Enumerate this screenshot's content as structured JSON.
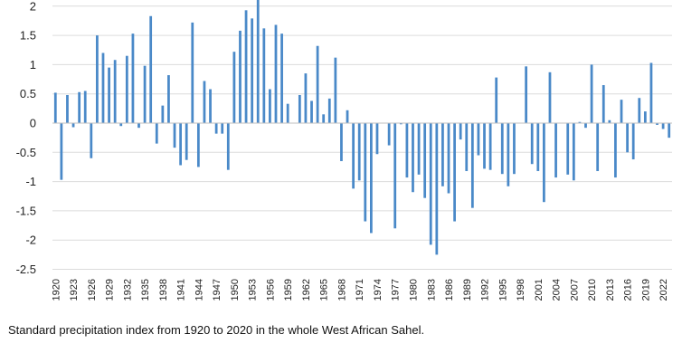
{
  "caption": "Standard precipitation index from 1920 to 2020 in the whole West African Sahel.",
  "chart_data": {
    "type": "bar",
    "color": "#4a89c8",
    "gridlines": true,
    "ylim": [
      -2.5,
      2.1
    ],
    "yticks": [
      "2",
      "1.5",
      "1",
      "0.5",
      "0",
      "-0.5",
      "-1",
      "-1.5",
      "-2",
      "-2.5"
    ],
    "ytick_values": [
      2,
      1.5,
      1,
      0.5,
      0,
      -0.5,
      -1,
      -1.5,
      -2,
      -2.5
    ],
    "xtick_labels": [
      "1920",
      "1923",
      "1926",
      "1929",
      "1932",
      "1935",
      "1938",
      "1941",
      "1944",
      "1947",
      "1950",
      "1953",
      "1956",
      "1959",
      "1962",
      "1965",
      "1968",
      "1971",
      "1974",
      "1977",
      "1980",
      "1983",
      "1986",
      "1989",
      "1992",
      "1995",
      "1998",
      "2001",
      "2004",
      "2007",
      "2010",
      "2013",
      "2016",
      "2019",
      "2022"
    ],
    "start_year": 1920,
    "values": [
      0.52,
      -0.97,
      0.48,
      -0.07,
      0.53,
      0.55,
      -0.6,
      1.5,
      1.2,
      0.95,
      1.08,
      -0.05,
      1.15,
      1.53,
      -0.08,
      0.98,
      1.83,
      -0.35,
      0.3,
      0.82,
      -0.42,
      -0.72,
      -0.63,
      1.72,
      -0.75,
      0.72,
      0.58,
      -0.18,
      -0.18,
      -0.8,
      1.22,
      1.58,
      1.93,
      1.79,
      2.12,
      1.62,
      0.58,
      1.68,
      1.53,
      0.33,
      0,
      0.48,
      0.85,
      0.38,
      1.32,
      0.15,
      0.42,
      1.12,
      -0.65,
      0.22,
      -1.12,
      -0.98,
      -1.68,
      -1.88,
      -0.53,
      0,
      -0.38,
      -1.8,
      -0.02,
      -0.93,
      -1.18,
      -0.88,
      -1.28,
      -2.08,
      -2.25,
      -1.08,
      -1.2,
      -1.68,
      -0.28,
      -0.82,
      -1.45,
      -0.55,
      -0.78,
      -0.8,
      0.78,
      -0.87,
      -1.08,
      -0.87,
      0,
      0.97,
      -0.7,
      -0.82,
      -1.35,
      0.87,
      -0.93,
      0,
      -0.88,
      -0.98,
      0.02,
      -0.08,
      1,
      -0.82,
      0.65,
      0.05,
      -0.93,
      0.4,
      -0.5,
      -0.62,
      0.43,
      0.2,
      1.03,
      -0.03,
      -0.1,
      -0.25
    ]
  }
}
